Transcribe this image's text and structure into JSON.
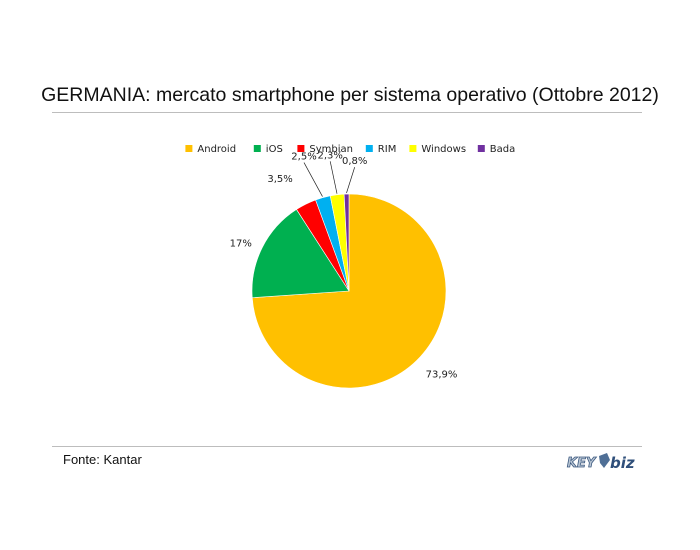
{
  "chart_data": {
    "type": "pie",
    "title": "GERMANIA: mercato smartphone per sistema operativo (Ottobre 2012)",
    "legend_position": "top",
    "slices": [
      {
        "name": "Android",
        "value": 73.9,
        "label": "73,9%",
        "color": "#FFC000"
      },
      {
        "name": "iOS",
        "value": 17,
        "label": "17%",
        "color": "#00B050"
      },
      {
        "name": "Symbian",
        "value": 3.5,
        "label": "3,5%",
        "color": "#FF0000"
      },
      {
        "name": "RIM",
        "value": 2.5,
        "label": "2,5%",
        "color": "#00B0F0"
      },
      {
        "name": "Windows",
        "value": 2.3,
        "label": "2,3%",
        "color": "#FFFF00"
      },
      {
        "name": "Bada",
        "value": 0.8,
        "label": "0,8%",
        "color": "#7030A0"
      }
    ]
  },
  "footer": {
    "source": "Fonte: Kantar",
    "logo_text_left": "KEY",
    "logo_text_right": "biz",
    "logo_icon": "key4biz-logo"
  }
}
